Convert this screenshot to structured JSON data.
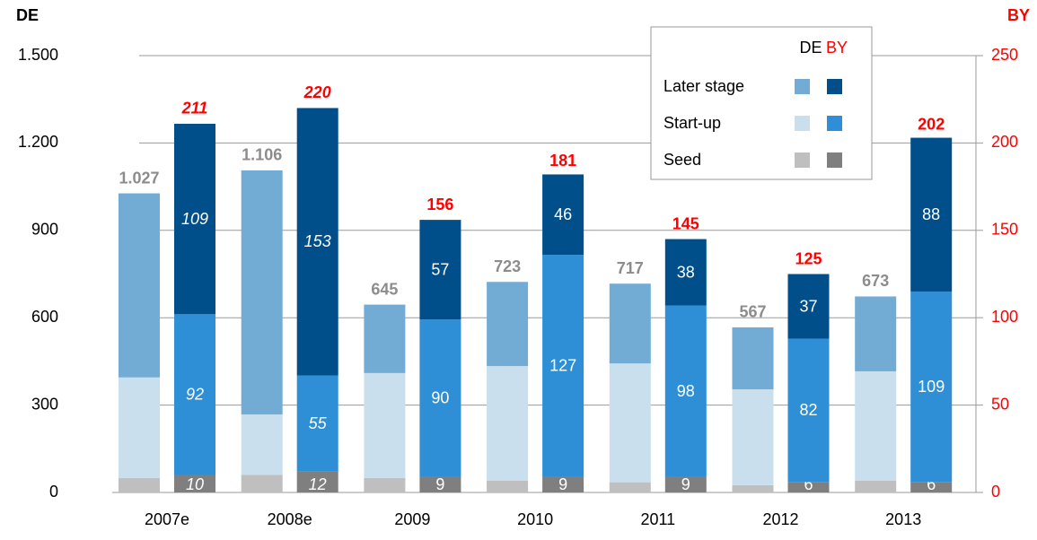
{
  "chart_data": {
    "type": "grouped_stacked_bar",
    "y_label": "DE",
    "y2_label": "BY",
    "categories": [
      "2007e",
      "2008e",
      "2009",
      "2010",
      "2011",
      "2012",
      "2013"
    ],
    "ylim": [
      0,
      1500
    ],
    "yticks": [
      0,
      300,
      600,
      900,
      {
        "value": 1200,
        "label": "1.200"
      },
      {
        "value": 1500,
        "label": "1.500"
      }
    ],
    "y2lim": [
      0,
      250
    ],
    "y2ticks": [
      0,
      50,
      100,
      150,
      200,
      250
    ],
    "grid": true,
    "legend": "top-right",
    "groups": [
      {
        "name": "DE",
        "axis": "y",
        "series": [
          {
            "name": "Seed",
            "color": "#bfbfbf",
            "values": [
              50,
              60,
              50,
              40,
              35,
              25,
              40
            ]
          },
          {
            "name": "Start-up",
            "color": "#c9dfed",
            "values": [
              345,
              208,
              360,
              394,
              408,
              329,
              376
            ]
          },
          {
            "name": "Later stage",
            "color": "#72acd4",
            "values": [
              632,
              838,
              235,
              289,
              274,
              213,
              257
            ]
          }
        ],
        "totals": {
          "color": "#8c8c8c",
          "values": [
            1027,
            1106,
            645,
            723,
            717,
            567,
            673
          ],
          "value_labels": [
            "1.027",
            "1.106",
            "645",
            "723",
            "717",
            "567",
            "673"
          ]
        }
      },
      {
        "name": "BY",
        "axis": "y2",
        "series": [
          {
            "name": "Seed",
            "color": "#7f7f7f",
            "values": [
              10,
              12,
              9,
              9,
              9,
              6,
              6
            ]
          },
          {
            "name": "Start-up",
            "color": "#2e8fd6",
            "values": [
              92,
              55,
              90,
              127,
              98,
              82,
              109
            ]
          },
          {
            "name": "Later stage",
            "color": "#004f8a",
            "values": [
              109,
              153,
              57,
              46,
              38,
              37,
              88
            ]
          }
        ],
        "totals": {
          "color": "#ff0000",
          "values": [
            211,
            220,
            156,
            181,
            145,
            125,
            202
          ]
        }
      }
    ]
  }
}
